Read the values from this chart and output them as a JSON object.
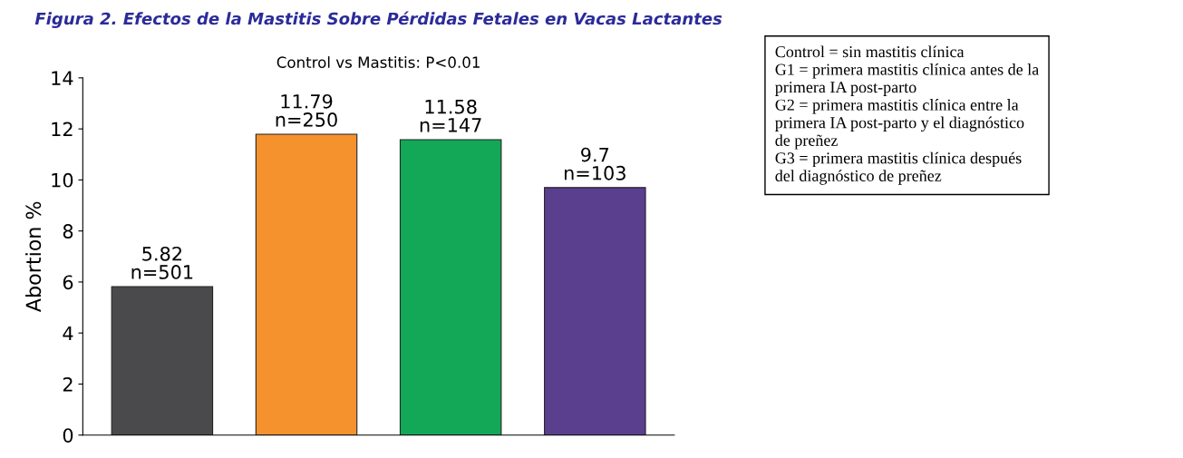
{
  "chart_data": {
    "type": "bar",
    "title": "Figura 2. Efectos de la Mastitis Sobre Pérdidas Fetales en Vacas Lactantes",
    "subtitle": "Control vs Mastitis: P<0.01",
    "ylabel": "Abortion %",
    "categories": [
      null,
      null,
      null,
      null
    ],
    "values": [
      5.82,
      11.79,
      11.58,
      9.7
    ],
    "colors": [
      "#4a4a4c",
      "#f5922e",
      "#13a858",
      "#5b3f8f"
    ],
    "value_labels": [
      "5.82\nn=501",
      "11.79\nn=250",
      "11.58\nn=147",
      "9.7\nn=103"
    ],
    "ylim": [
      0,
      14
    ],
    "yticks": [
      0,
      2,
      4,
      6,
      8,
      10,
      12,
      14
    ],
    "grid": false,
    "annotations": [
      "Control = sin mastitis clínica\nG1 = primera mastitis clínica antes de la\nprimera IA post-parto\nG2 = primera mastitis clínica entre la\nprimera IA post-parto y el diagnóstico\nde preñez\nG3 = primera mastitis clínica después\ndel diagnóstico de preñez"
    ]
  }
}
